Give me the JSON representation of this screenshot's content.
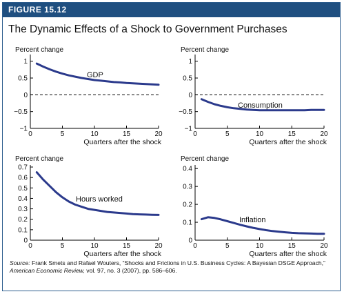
{
  "figure": {
    "label": "FIGURE 15.12",
    "title": "The Dynamic Effects of a Shock to Government Purchases",
    "source_label": "Source:",
    "source_text_1": " Frank Smets and Rafael Wouters, “Shocks and Frictions in U.S. Business Cycles: A Bayesian DSGE Approach,” ",
    "source_journal": "American Economic Review,",
    "source_text_2": " vol. 97, no. 3 (2007), pp. 586–606."
  },
  "colors": {
    "header": "#1f4f80",
    "line": "#2b3a8c",
    "axis": "#000000"
  },
  "chart_data": [
    {
      "type": "line",
      "ylabel": "Percent change",
      "xlabel": "Quarters after the shock",
      "series_label": "GDP",
      "xlim": [
        0,
        20
      ],
      "ylim": [
        -1,
        1.2
      ],
      "xticks": [
        0,
        5,
        10,
        15,
        20
      ],
      "yticks": [
        -1,
        -0.5,
        0,
        0.5,
        1
      ],
      "ytick_labels": [
        "−1",
        "−0.5",
        "0",
        "0.5",
        "1"
      ],
      "zero_line": true,
      "x": [
        1,
        2,
        3,
        4,
        5,
        6,
        7,
        8,
        9,
        10,
        11,
        12,
        13,
        14,
        15,
        16,
        17,
        18,
        19,
        20
      ],
      "y": [
        0.93,
        0.84,
        0.76,
        0.69,
        0.63,
        0.58,
        0.54,
        0.5,
        0.47,
        0.44,
        0.42,
        0.4,
        0.38,
        0.37,
        0.35,
        0.34,
        0.33,
        0.32,
        0.31,
        0.3
      ]
    },
    {
      "type": "line",
      "ylabel": "Percent change",
      "xlabel": "Quarters after the shock",
      "series_label": "Consumption",
      "xlim": [
        0,
        20
      ],
      "ylim": [
        -1,
        1.2
      ],
      "xticks": [
        0,
        5,
        10,
        15,
        20
      ],
      "yticks": [
        -1,
        -0.5,
        0,
        0.5,
        1
      ],
      "ytick_labels": [
        "−1",
        "−0.5",
        "0",
        "0.5",
        "1"
      ],
      "zero_line": true,
      "x": [
        1,
        2,
        3,
        4,
        5,
        6,
        7,
        8,
        9,
        10,
        11,
        12,
        13,
        14,
        15,
        16,
        17,
        18,
        19,
        20
      ],
      "y": [
        -0.13,
        -0.21,
        -0.28,
        -0.33,
        -0.37,
        -0.4,
        -0.42,
        -0.44,
        -0.45,
        -0.46,
        -0.46,
        -0.46,
        -0.46,
        -0.46,
        -0.46,
        -0.46,
        -0.46,
        -0.45,
        -0.45,
        -0.45
      ]
    },
    {
      "type": "line",
      "ylabel": "Percent change",
      "xlabel": "Quarters after the shock",
      "series_label": "Hours worked",
      "xlim": [
        0,
        20
      ],
      "ylim": [
        0,
        0.72
      ],
      "xticks": [
        0,
        5,
        10,
        15,
        20
      ],
      "yticks": [
        0,
        0.1,
        0.2,
        0.3,
        0.4,
        0.5,
        0.6,
        0.7
      ],
      "ytick_labels": [
        "0",
        "0.1",
        "0.2",
        "0.3",
        "0.4",
        "0.5",
        "0.6",
        "0.7"
      ],
      "zero_line": false,
      "x": [
        1,
        2,
        3,
        4,
        5,
        6,
        7,
        8,
        9,
        10,
        11,
        12,
        13,
        14,
        15,
        16,
        17,
        18,
        19,
        20
      ],
      "y": [
        0.65,
        0.58,
        0.52,
        0.46,
        0.41,
        0.37,
        0.34,
        0.32,
        0.3,
        0.29,
        0.28,
        0.27,
        0.265,
        0.26,
        0.255,
        0.25,
        0.247,
        0.245,
        0.243,
        0.242
      ]
    },
    {
      "type": "line",
      "ylabel": "Percent change",
      "xlabel": "Quarters after the shock",
      "series_label": "Inflation",
      "xlim": [
        0,
        20
      ],
      "ylim": [
        0,
        0.42
      ],
      "xticks": [
        0,
        5,
        10,
        15,
        20
      ],
      "yticks": [
        0,
        0.1,
        0.2,
        0.3,
        0.4
      ],
      "ytick_labels": [
        "0",
        "0.1",
        "0.2",
        "0.3",
        "0.4"
      ],
      "zero_line": false,
      "x": [
        1,
        2,
        3,
        4,
        5,
        6,
        7,
        8,
        9,
        10,
        11,
        12,
        13,
        14,
        15,
        16,
        17,
        18,
        19,
        20
      ],
      "y": [
        0.117,
        0.128,
        0.124,
        0.116,
        0.106,
        0.096,
        0.086,
        0.077,
        0.069,
        0.062,
        0.056,
        0.051,
        0.047,
        0.044,
        0.041,
        0.039,
        0.038,
        0.037,
        0.036,
        0.036
      ]
    }
  ]
}
